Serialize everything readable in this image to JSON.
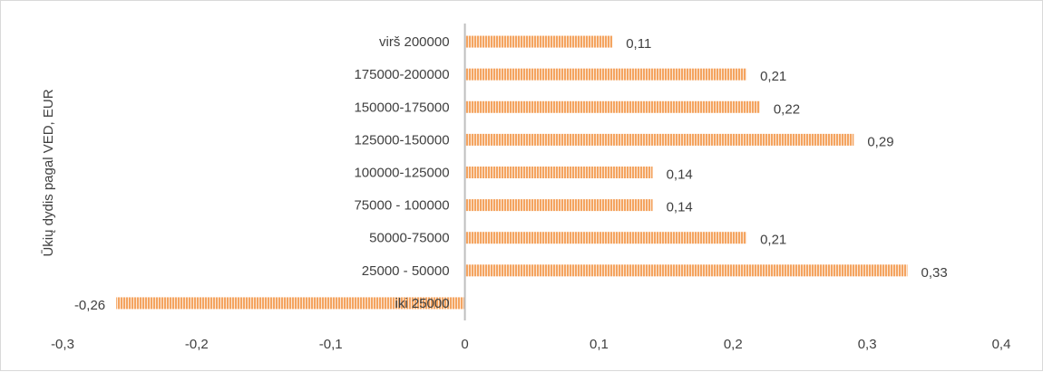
{
  "chart_data": {
    "type": "bar",
    "orientation": "horizontal",
    "title": "",
    "xlabel": "",
    "ylabel": "Ūkių dydis pagal VED, EUR",
    "categories": [
      "iki 25000",
      "25000  - 50000",
      "50000-75000",
      "75000 - 100000",
      "100000-125000",
      "125000-150000",
      "150000-175000",
      "175000-200000",
      "virš 200000"
    ],
    "values": [
      -0.26,
      0.33,
      0.21,
      0.14,
      0.14,
      0.29,
      0.22,
      0.21,
      0.11
    ],
    "value_labels": [
      "-0,26",
      "0,33",
      "0,21",
      "0,14",
      "0,14",
      "0,29",
      "0,22",
      "0,21",
      "0,11"
    ],
    "xlim": [
      -0.3,
      0.4
    ],
    "xticks": [
      -0.3,
      -0.2,
      -0.1,
      0,
      0.1,
      0.2,
      0.3,
      0.4
    ],
    "xtick_labels": [
      "-0,3",
      "-0,2",
      "-0,1",
      "0",
      "0,1",
      "0,2",
      "0,3",
      "0,4"
    ],
    "grid": false,
    "legend": "none",
    "bar_color": "#f4a460",
    "bar_stripe_color": "#ffffff"
  }
}
